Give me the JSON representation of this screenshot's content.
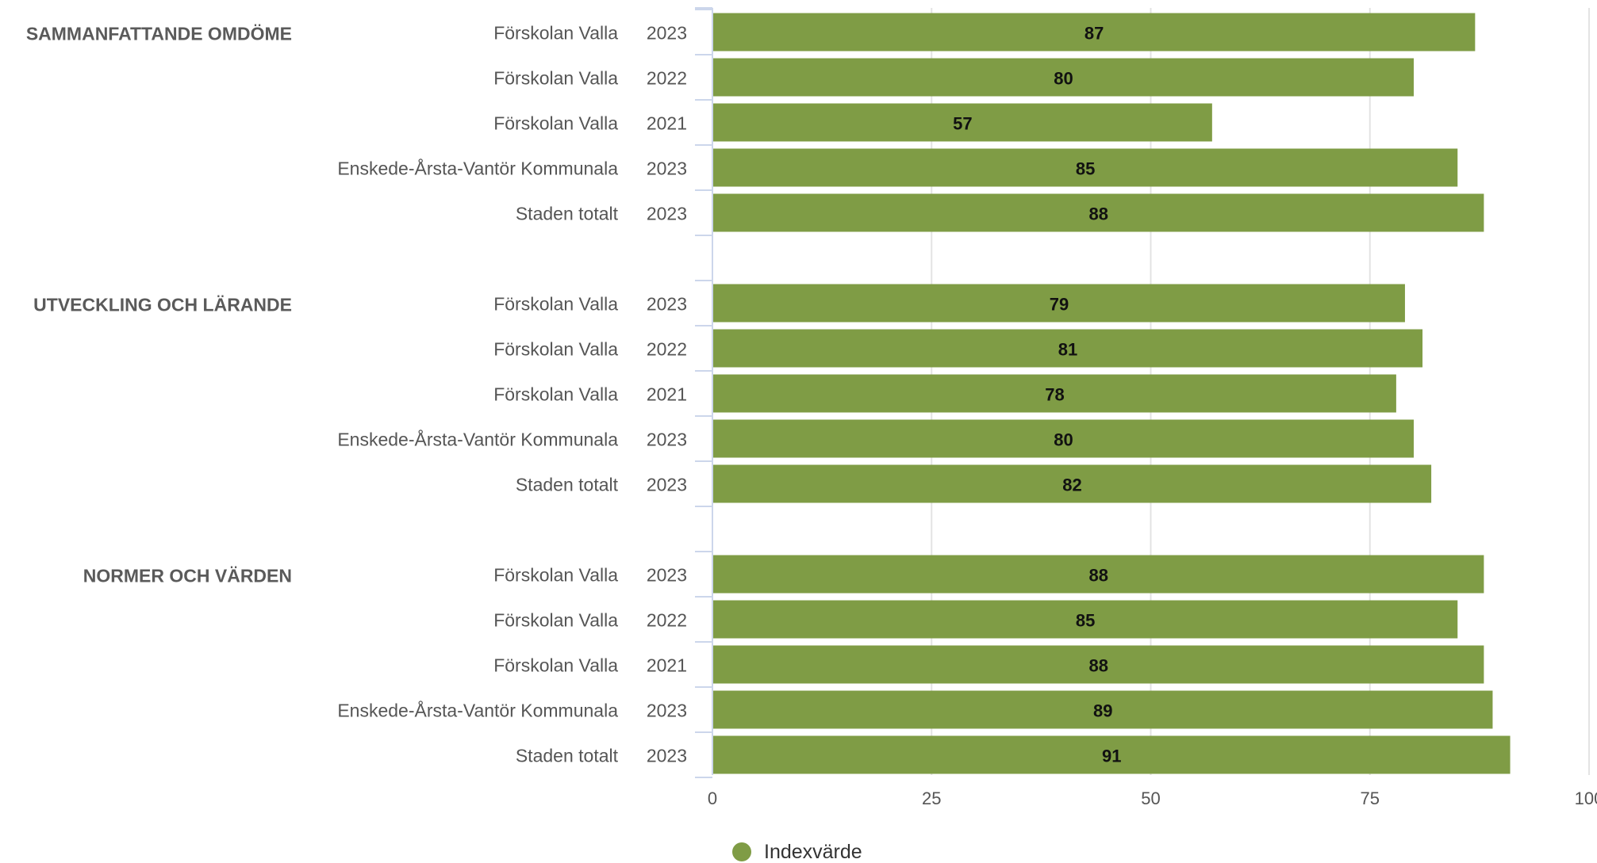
{
  "chart_data": {
    "type": "bar",
    "orientation": "horizontal",
    "groups": [
      {
        "name": "SAMMANFATTANDE OMDÖME",
        "rows": [
          {
            "unit": "Förskolan Valla",
            "year": "2023",
            "value": 87
          },
          {
            "unit": "Förskolan Valla",
            "year": "2022",
            "value": 80
          },
          {
            "unit": "Förskolan Valla",
            "year": "2021",
            "value": 57
          },
          {
            "unit": "Enskede-Årsta-Vantör Kommunala",
            "year": "2023",
            "value": 85
          },
          {
            "unit": "Staden totalt",
            "year": "2023",
            "value": 88
          }
        ]
      },
      {
        "name": "UTVECKLING OCH LÄRANDE",
        "rows": [
          {
            "unit": "Förskolan Valla",
            "year": "2023",
            "value": 79
          },
          {
            "unit": "Förskolan Valla",
            "year": "2022",
            "value": 81
          },
          {
            "unit": "Förskolan Valla",
            "year": "2021",
            "value": 78
          },
          {
            "unit": "Enskede-Årsta-Vantör Kommunala",
            "year": "2023",
            "value": 80
          },
          {
            "unit": "Staden totalt",
            "year": "2023",
            "value": 82
          }
        ]
      },
      {
        "name": "NORMER OCH VÄRDEN",
        "rows": [
          {
            "unit": "Förskolan Valla",
            "year": "2023",
            "value": 88
          },
          {
            "unit": "Förskolan Valla",
            "year": "2022",
            "value": 85
          },
          {
            "unit": "Förskolan Valla",
            "year": "2021",
            "value": 88
          },
          {
            "unit": "Enskede-Årsta-Vantör Kommunala",
            "year": "2023",
            "value": 89
          },
          {
            "unit": "Staden totalt",
            "year": "2023",
            "value": 91
          }
        ]
      }
    ],
    "xlim": [
      0,
      100
    ],
    "xticks": [
      0,
      25,
      50,
      75,
      100
    ],
    "grid": true,
    "series": [
      {
        "name": "Indexvärde",
        "color": "#7f9c45"
      }
    ],
    "legend": {
      "position": "bottom"
    }
  }
}
